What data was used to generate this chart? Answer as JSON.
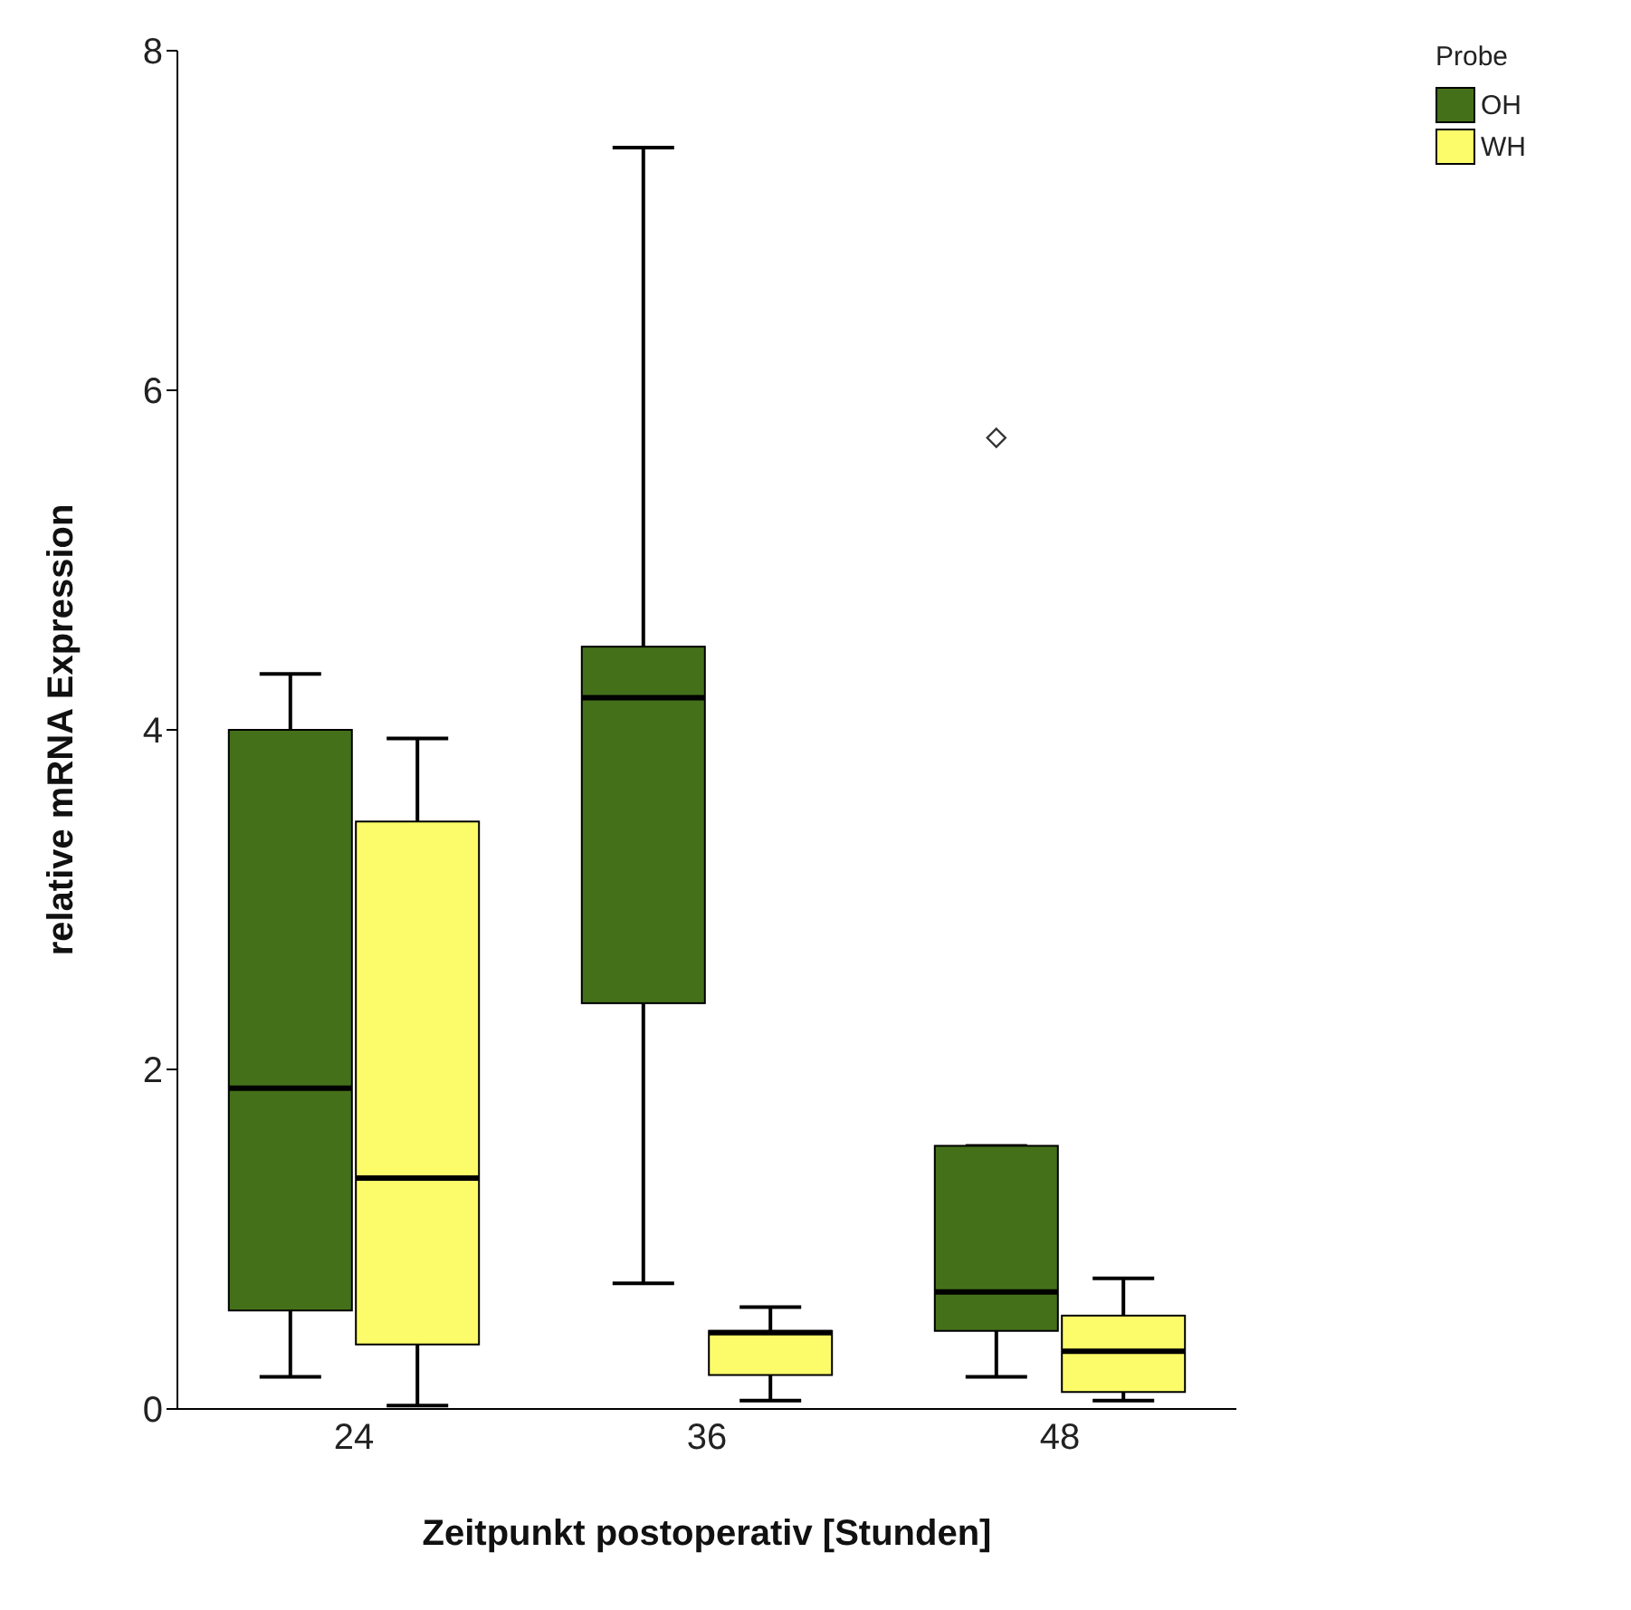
{
  "chart_data": {
    "type": "box",
    "xlabel": "Zeitpunkt postoperativ [Stunden]",
    "ylabel": "relative mRNA Expression",
    "legend_title": "Probe",
    "legend": "top right",
    "categories": [
      "24",
      "36",
      "48"
    ],
    "ylim": [
      0,
      8
    ],
    "yticks": [
      0,
      2,
      4,
      6,
      8
    ],
    "grid": false,
    "series": [
      {
        "name": "OH",
        "color": "#44701a",
        "boxes": [
          {
            "low": 0.19,
            "q1": 0.58,
            "median": 1.89,
            "q3": 4.0,
            "high": 4.33
          },
          {
            "low": 0.74,
            "q1": 2.39,
            "median": 4.19,
            "q3": 4.49,
            "high": 7.43
          },
          {
            "low": 0.19,
            "q1": 0.46,
            "median": 0.69,
            "q3": 1.55,
            "high": 1.55,
            "outliers": [
              5.72
            ]
          }
        ]
      },
      {
        "name": "WH",
        "color": "#fcfc6a",
        "boxes": [
          {
            "low": 0.02,
            "q1": 0.38,
            "median": 1.36,
            "q3": 3.46,
            "high": 3.95
          },
          {
            "low": 0.05,
            "q1": 0.2,
            "median": 0.45,
            "q3": 0.46,
            "high": 0.6
          },
          {
            "low": 0.05,
            "q1": 0.1,
            "median": 0.34,
            "q3": 0.55,
            "high": 0.77
          }
        ]
      }
    ]
  }
}
